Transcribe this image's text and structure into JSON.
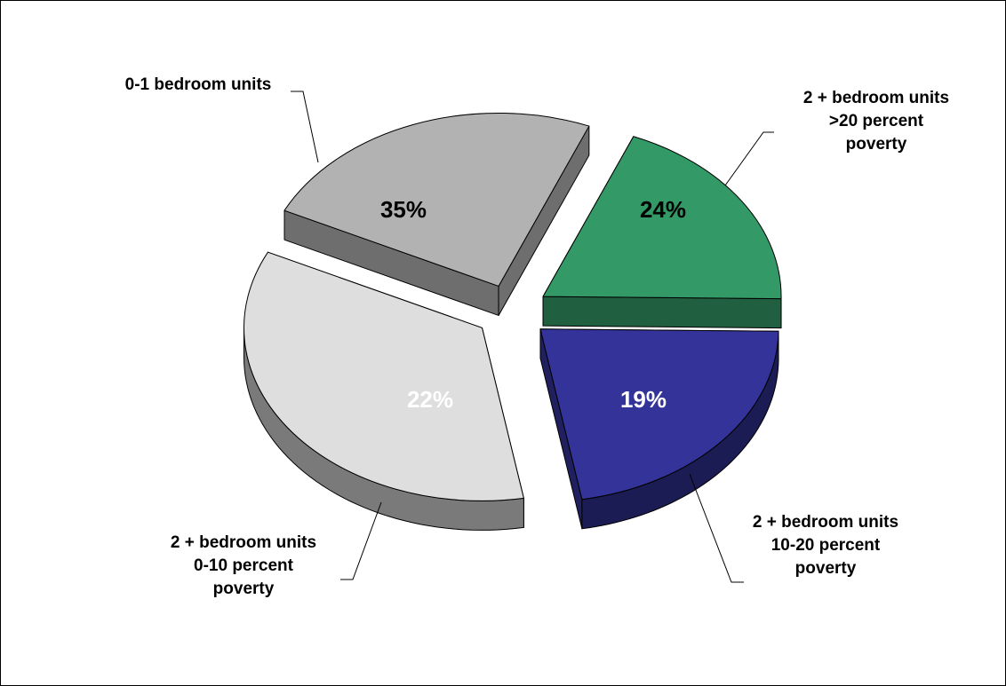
{
  "chart_data": {
    "type": "pie",
    "style": "3d-exploded",
    "title": "",
    "categories": [
      "0-1 bedroom units",
      "2 + bedroom units >20 percent poverty",
      "2 + bedroom units 10-20 percent poverty",
      "2 + bedroom units 0-10 percent poverty"
    ],
    "values": [
      35,
      24,
      19,
      22
    ],
    "data_labels": [
      "35%",
      "24%",
      "19%",
      "22%"
    ],
    "label_lines": [
      [
        "0-1 bedroom units"
      ],
      [
        "2 + bedroom units",
        ">20 percent",
        "poverty"
      ],
      [
        "2 + bedroom units",
        "10-20 percent",
        "poverty"
      ],
      [
        "2 + bedroom units",
        "0-10 percent",
        "poverty"
      ]
    ],
    "colors": [
      "#dedede",
      "#b2b2b2",
      "#339966",
      "#333399"
    ],
    "data_label_colors": [
      "#000000",
      "#000000",
      "#ffffff",
      "#ffffff"
    ],
    "legend": "none"
  }
}
